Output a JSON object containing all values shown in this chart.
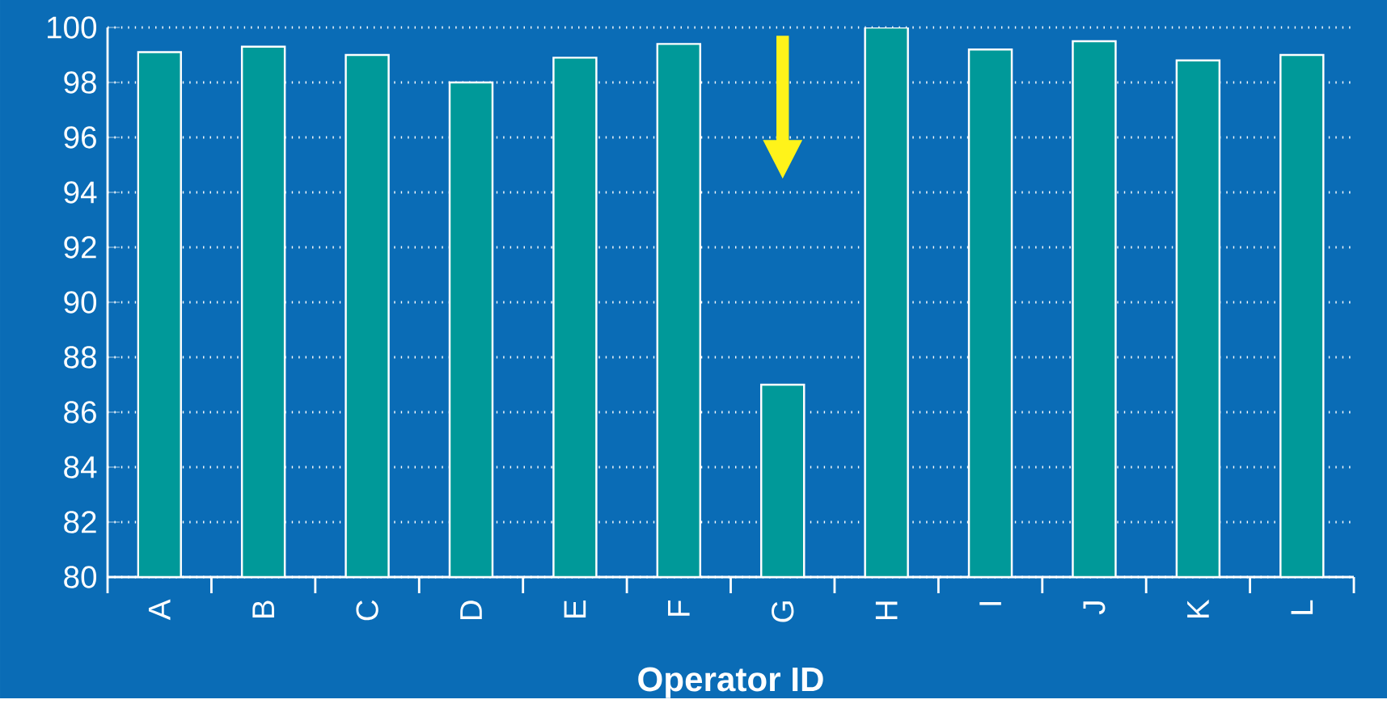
{
  "chart_data": {
    "type": "bar",
    "xlabel": "Operator ID",
    "categories": [
      "A",
      "B",
      "C",
      "D",
      "E",
      "F",
      "G",
      "H",
      "I",
      "J",
      "K",
      "L"
    ],
    "values": [
      99.1,
      99.3,
      99.0,
      98.0,
      98.9,
      99.4,
      87.0,
      100.0,
      99.2,
      99.5,
      98.8,
      99.0
    ],
    "color": "#009999",
    "ylim": [
      80,
      100
    ],
    "yticks": [
      80,
      82,
      84,
      86,
      88,
      90,
      92,
      94,
      96,
      98,
      100
    ],
    "grid": "y"
  }
}
